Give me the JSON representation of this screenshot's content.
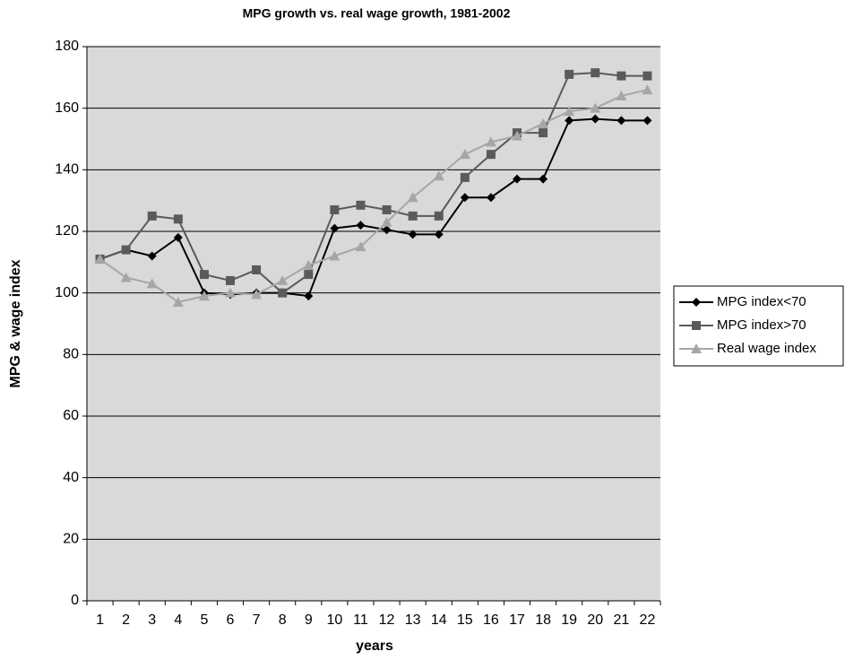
{
  "chart_data": {
    "type": "line",
    "title": "MPG growth vs. real wage growth, 1981-2002",
    "x_label": "years",
    "y_label": "MPG & wage index",
    "categories": [
      "1",
      "2",
      "3",
      "4",
      "5",
      "6",
      "7",
      "8",
      "9",
      "10",
      "11",
      "12",
      "13",
      "14",
      "15",
      "16",
      "17",
      "18",
      "19",
      "20",
      "21",
      "22"
    ],
    "series": [
      {
        "name": "MPG index<70",
        "color": "#000000",
        "marker": "diamond",
        "values": [
          111,
          114,
          112,
          118,
          100,
          99.5,
          100,
          100,
          99,
          121,
          122,
          120.5,
          119,
          119,
          131,
          131,
          137,
          137,
          156,
          156.5,
          156,
          156
        ]
      },
      {
        "name": "MPG index>70",
        "color": "#5a5a5a",
        "marker": "square",
        "values": [
          111,
          114,
          125,
          124,
          106,
          104,
          107.5,
          100,
          106,
          127,
          128.5,
          127,
          125,
          125,
          137.5,
          145,
          152,
          152,
          171,
          171.5,
          170.5,
          170.5
        ]
      },
      {
        "name": "Real wage index",
        "color": "#a6a6a6",
        "marker": "triangle",
        "values": [
          111,
          105,
          103,
          97,
          99,
          100,
          99.5,
          104,
          109,
          112,
          115,
          123,
          131,
          138,
          145,
          149,
          151,
          155,
          159,
          160,
          164,
          166
        ]
      }
    ],
    "ylim": [
      0,
      180
    ],
    "yticks": [
      0,
      20,
      40,
      60,
      80,
      100,
      120,
      140,
      160,
      180
    ],
    "grid": true,
    "legend": "right",
    "plot_background": "#d9d9d9"
  }
}
